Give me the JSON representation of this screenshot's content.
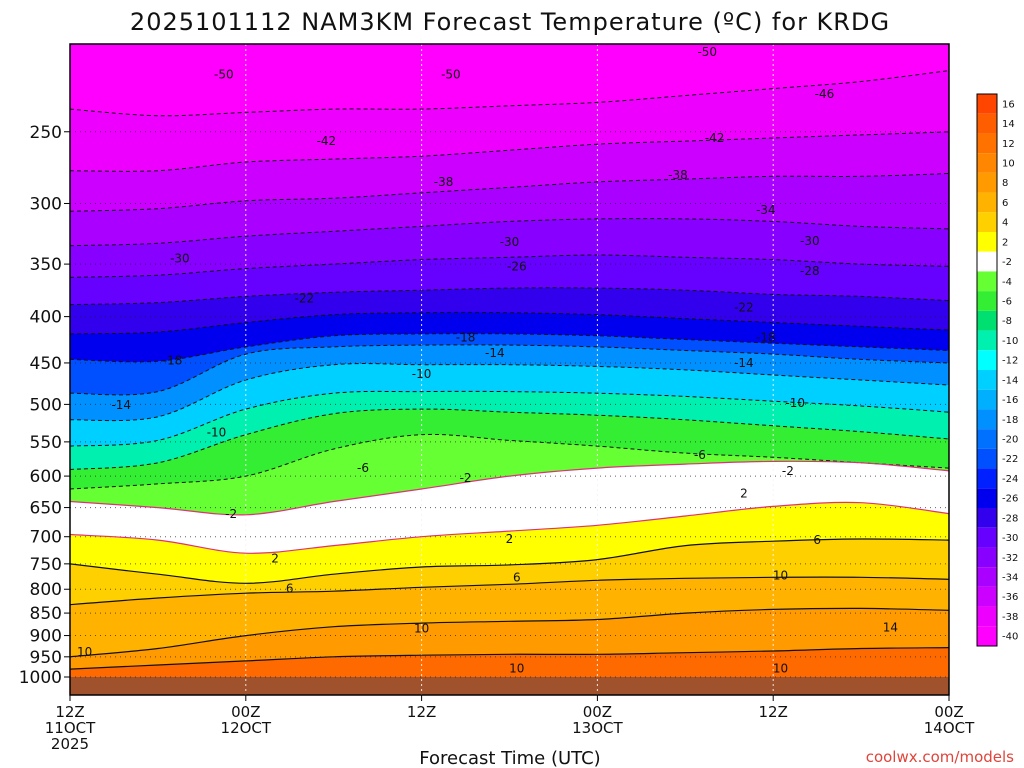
{
  "chart_data": {
    "type": "heatmap",
    "title": "2025101112 NAM3KM Forecast Temperature (ºC) for KRDG",
    "xlabel": "Forecast Time (UTC)",
    "ylabel": "",
    "y_scale": "log",
    "y_ticks": [
      "250",
      "300",
      "350",
      "400",
      "450",
      "500",
      "550",
      "600",
      "650",
      "700",
      "750",
      "800",
      "850",
      "900",
      "950",
      "1000"
    ],
    "y_range_hpa": [
      200,
      1000
    ],
    "x_range_hours": [
      0,
      60
    ],
    "x_ticks": [
      {
        "hour": 0,
        "lines": [
          "12Z",
          "11OCT",
          "2025"
        ]
      },
      {
        "hour": 12,
        "lines": [
          "00Z",
          "12OCT"
        ]
      },
      {
        "hour": 24,
        "lines": [
          "12Z"
        ]
      },
      {
        "hour": 36,
        "lines": [
          "00Z",
          "13OCT"
        ]
      },
      {
        "hour": 48,
        "lines": [
          "12Z"
        ]
      },
      {
        "hour": 60,
        "lines": [
          "00Z",
          "14OCT"
        ]
      }
    ],
    "grid": true,
    "colorbar": {
      "labels": [
        "16",
        "14",
        "12",
        "10",
        "8",
        "6",
        "4",
        "2",
        "-2",
        "-4",
        "-6",
        "-8",
        "-10",
        "-12",
        "-14",
        "-16",
        "-18",
        "-20",
        "-22",
        "-24",
        "-26",
        "-28",
        "-30",
        "-32",
        "-34",
        "-36",
        "-38",
        "-40"
      ],
      "colors": [
        "#ff4500",
        "#ff5e00",
        "#ff7200",
        "#ff8600",
        "#ff9a00",
        "#ffb300",
        "#ffd000",
        "#ffff00",
        "#ffffff",
        "#66ff33",
        "#33ee33",
        "#00e070",
        "#00f0b0",
        "#00ffff",
        "#00d0ff",
        "#00b0ff",
        "#0090ff",
        "#0070ff",
        "#0050ff",
        "#0020ff",
        "#0000ee",
        "#3300ee",
        "#6600ff",
        "#8800ff",
        "#aa00ff",
        "#cc00ff",
        "#ee00ff",
        "#ff00ff"
      ]
    },
    "contour_labels": [
      {
        "text": "-50",
        "hour": 10.5,
        "p": 216
      },
      {
        "text": "-50",
        "hour": 26,
        "p": 216
      },
      {
        "text": "-50",
        "hour": 43.5,
        "p": 204
      },
      {
        "text": "-46",
        "hour": 51.5,
        "p": 227
      },
      {
        "text": "-42",
        "hour": 17.5,
        "p": 256
      },
      {
        "text": "-42",
        "hour": 44,
        "p": 254
      },
      {
        "text": "-38",
        "hour": 25.5,
        "p": 284
      },
      {
        "text": "-38",
        "hour": 41.5,
        "p": 279
      },
      {
        "text": "-34",
        "hour": 47.5,
        "p": 305
      },
      {
        "text": "-30",
        "hour": 7.5,
        "p": 345
      },
      {
        "text": "-30",
        "hour": 30,
        "p": 331
      },
      {
        "text": "-30",
        "hour": 50.5,
        "p": 330
      },
      {
        "text": "-26",
        "hour": 30.5,
        "p": 352
      },
      {
        "text": "-28",
        "hour": 50.5,
        "p": 356
      },
      {
        "text": "-22",
        "hour": 16,
        "p": 382
      },
      {
        "text": "-22",
        "hour": 46,
        "p": 391
      },
      {
        "text": "-18",
        "hour": 7,
        "p": 447
      },
      {
        "text": "-18",
        "hour": 27,
        "p": 422
      },
      {
        "text": "-18",
        "hour": 47.5,
        "p": 422
      },
      {
        "text": "-14",
        "hour": 29,
        "p": 439
      },
      {
        "text": "-14",
        "hour": 46,
        "p": 450
      },
      {
        "text": "-14",
        "hour": 3.5,
        "p": 501
      },
      {
        "text": "-10",
        "hour": 24,
        "p": 463
      },
      {
        "text": "-10",
        "hour": 49.5,
        "p": 498
      },
      {
        "text": "-10",
        "hour": 10,
        "p": 537
      },
      {
        "text": "-6",
        "hour": 20,
        "p": 588
      },
      {
        "text": "-6",
        "hour": 43,
        "p": 569
      },
      {
        "text": "-2",
        "hour": 27,
        "p": 603
      },
      {
        "text": "-2",
        "hour": 49,
        "p": 592
      },
      {
        "text": "-2",
        "hour": 11,
        "p": 661
      },
      {
        "text": "2",
        "hour": 46,
        "p": 627
      },
      {
        "text": "2",
        "hour": 30,
        "p": 704
      },
      {
        "text": "2",
        "hour": 14,
        "p": 740
      },
      {
        "text": "6",
        "hour": 51,
        "p": 706
      },
      {
        "text": "6",
        "hour": 30.5,
        "p": 776
      },
      {
        "text": "6",
        "hour": 15,
        "p": 798
      },
      {
        "text": "10",
        "hour": 48.5,
        "p": 773
      },
      {
        "text": "10",
        "hour": 24,
        "p": 884
      },
      {
        "text": "10",
        "hour": 1,
        "p": 939
      },
      {
        "text": "10",
        "hour": 30.5,
        "p": 979
      },
      {
        "text": "10",
        "hour": 48.5,
        "p": 979
      },
      {
        "text": "14",
        "hour": 56,
        "p": 882
      }
    ]
  },
  "credit": "coolwx.com/models"
}
